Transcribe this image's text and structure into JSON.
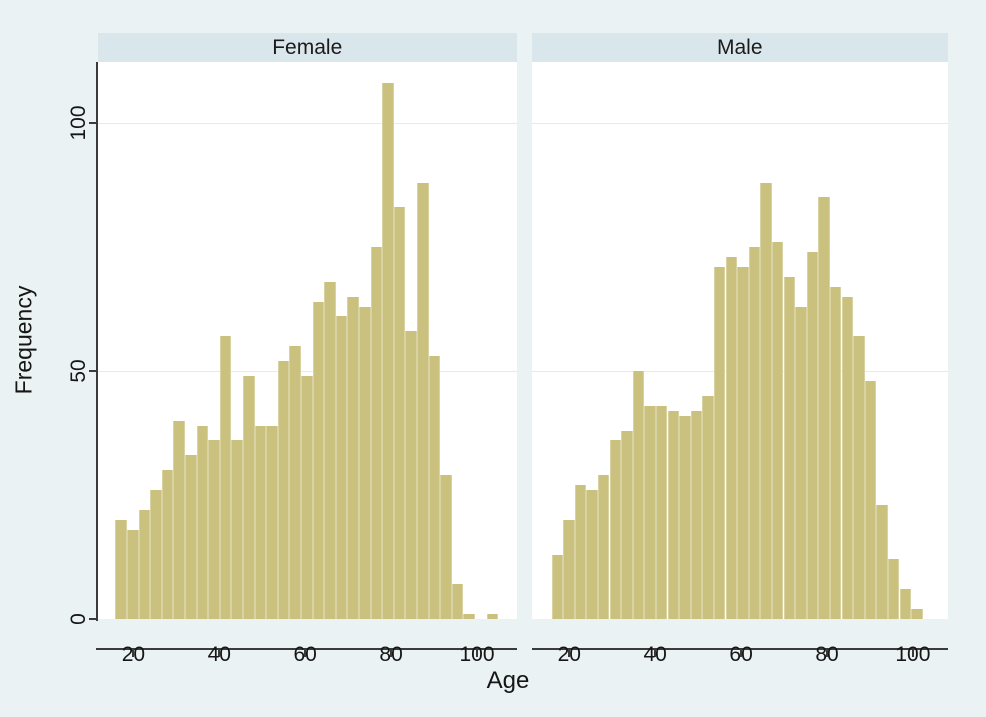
{
  "figure": {
    "kind": "stata-style faceted histogram",
    "background_color": "#eaf2f3",
    "plot_background_color": "#ffffff",
    "title_band_color": "#d9e6eb",
    "bar_fill_color": "#c9c17d",
    "bar_outline_color": "#d9d3a4",
    "gridline_color": "#e2ebf3",
    "axis_color": "#3b3b3b"
  },
  "y_axis": {
    "label": "Frequency",
    "tick_labels": [
      "0",
      "50",
      "100"
    ],
    "tick_values": [
      0,
      50,
      100
    ]
  },
  "x_axis": {
    "label": "Age",
    "tick_labels": [
      "20",
      "40",
      "60",
      "80",
      "100"
    ],
    "tick_values": [
      20,
      40,
      60,
      80,
      100
    ]
  },
  "chart_data": {
    "type": "bar",
    "subtype": "histogram",
    "title": "",
    "xlabel": "Age",
    "ylabel": "Frequency",
    "ylim": [
      0,
      112
    ],
    "xlim": [
      12,
      108
    ],
    "grid": "horizontal at 50 and 100",
    "legend_position": "none",
    "bin_start_age": 16,
    "bin_width_years": 2.73,
    "panels": [
      {
        "title": "Female",
        "frequencies": [
          20,
          18,
          22,
          26,
          30,
          40,
          33,
          39,
          36,
          57,
          36,
          49,
          39,
          39,
          52,
          55,
          49,
          64,
          68,
          61,
          65,
          63,
          75,
          108,
          83,
          58,
          88,
          53,
          29,
          7,
          1,
          0,
          1
        ]
      },
      {
        "title": "Male",
        "frequencies": [
          13,
          20,
          27,
          26,
          29,
          36,
          38,
          50,
          43,
          43,
          42,
          41,
          42,
          45,
          71,
          73,
          71,
          75,
          88,
          76,
          69,
          63,
          74,
          85,
          67,
          65,
          57,
          48,
          23,
          12,
          6,
          2
        ]
      }
    ]
  }
}
